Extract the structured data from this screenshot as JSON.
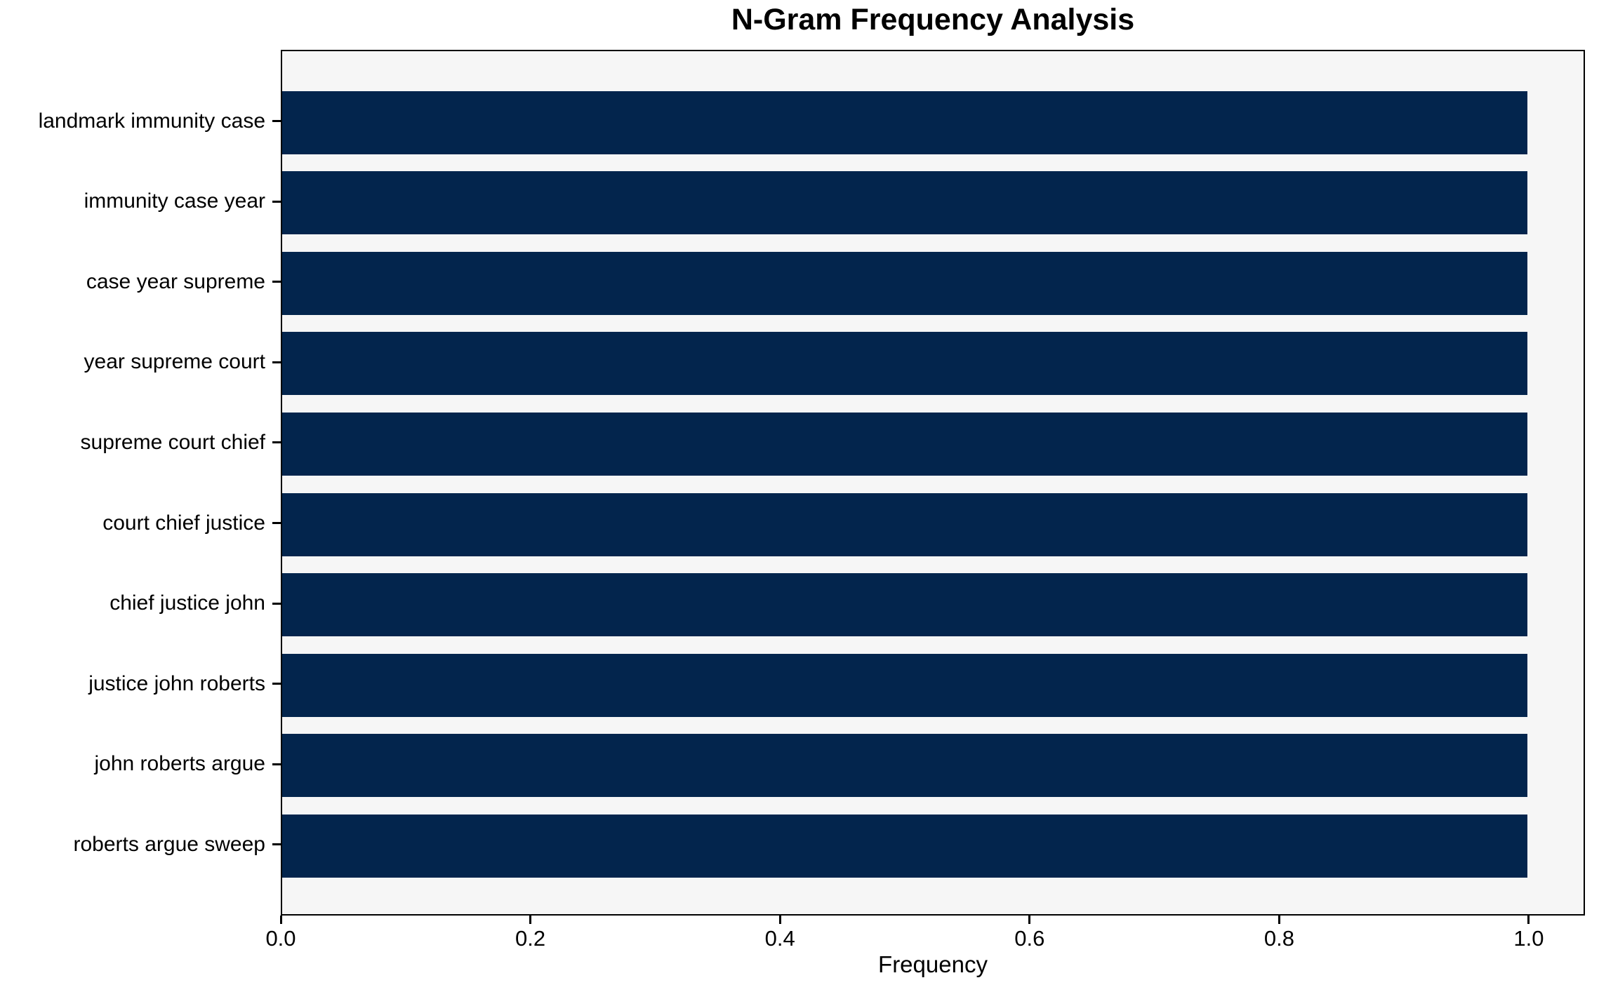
{
  "chart_data": {
    "type": "bar",
    "orientation": "horizontal",
    "title": "N-Gram Frequency Analysis",
    "xlabel": "Frequency",
    "ylabel": "",
    "categories": [
      "landmark immunity case",
      "immunity case year",
      "case year supreme",
      "year supreme court",
      "supreme court chief",
      "court chief justice",
      "chief justice john",
      "justice john roberts",
      "john roberts argue",
      "roberts argue sweep"
    ],
    "values": [
      1.0,
      1.0,
      1.0,
      1.0,
      1.0,
      1.0,
      1.0,
      1.0,
      1.0,
      1.0
    ],
    "xlim": [
      0.0,
      1.045
    ],
    "xticks": [
      0.0,
      0.2,
      0.4,
      0.6,
      0.8,
      1.0
    ],
    "xtick_labels": [
      "0.0",
      "0.2",
      "0.4",
      "0.6",
      "0.8",
      "1.0"
    ],
    "grid": false,
    "legend_position": "none",
    "bar_color": "#03254d",
    "plot_background": "#f6f6f6",
    "figure_background": "#ffffff",
    "axis_color": "#000000"
  }
}
